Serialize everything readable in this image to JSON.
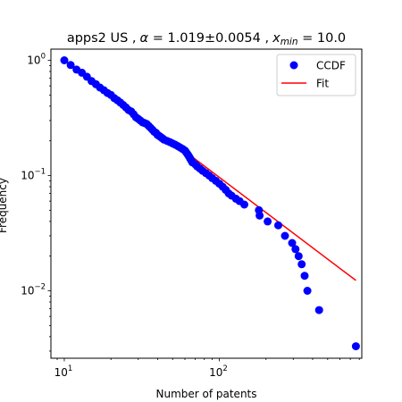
{
  "chart_data": {
    "type": "scatter",
    "title": "apps2 US , α = 1.019±0.0054 , x_min = 10.0",
    "title_parts": {
      "prefix": "apps2 US ,",
      "alpha_symbol": "α",
      "alpha_text": " = 1.019±0.0054 ,",
      "x_symbol": "x",
      "x_subscript": "min",
      "xmin_text": " = 10.0"
    },
    "xlabel": "Number of patents",
    "ylabel": "Frequency",
    "xscale": "log",
    "yscale": "log",
    "xlim": [
      8.2,
      830
    ],
    "ylim": [
      0.0026,
      1.25
    ],
    "x_ticks": [
      {
        "value": 10,
        "base": "10",
        "exp": "1"
      },
      {
        "value": 100,
        "base": "10",
        "exp": "2"
      }
    ],
    "y_ticks": [
      {
        "value": 0.01,
        "base": "10",
        "exp": "−2"
      },
      {
        "value": 0.1,
        "base": "10",
        "exp": "−1"
      },
      {
        "value": 1,
        "base": "10",
        "exp": "0"
      }
    ],
    "grid": false,
    "legend_position": "top-right",
    "series": [
      {
        "name": "CCDF",
        "kind": "scatter",
        "color": "#0000ff",
        "x": [
          10,
          11,
          12,
          13,
          14,
          15,
          16,
          17,
          18,
          19,
          20,
          21,
          22,
          23,
          24,
          25,
          26,
          27,
          28,
          29,
          30,
          31,
          32,
          33,
          34,
          35,
          36,
          37,
          38,
          39,
          40,
          41,
          42,
          43,
          44,
          46,
          48,
          50,
          52,
          54,
          56,
          58,
          60,
          61,
          62,
          63,
          64,
          65,
          66,
          67,
          70,
          72,
          75,
          78,
          82,
          86,
          90,
          95,
          100,
          105,
          110,
          115,
          120,
          128,
          135,
          145,
          180,
          182,
          205,
          240,
          265,
          295,
          310,
          325,
          340,
          355,
          370,
          440,
          760
        ],
        "y": [
          1.0,
          0.91,
          0.83,
          0.78,
          0.72,
          0.66,
          0.62,
          0.58,
          0.55,
          0.52,
          0.5,
          0.47,
          0.45,
          0.43,
          0.41,
          0.39,
          0.37,
          0.36,
          0.34,
          0.32,
          0.31,
          0.3,
          0.29,
          0.285,
          0.28,
          0.27,
          0.26,
          0.25,
          0.24,
          0.235,
          0.225,
          0.22,
          0.215,
          0.21,
          0.205,
          0.2,
          0.195,
          0.19,
          0.185,
          0.18,
          0.175,
          0.17,
          0.165,
          0.16,
          0.155,
          0.15,
          0.145,
          0.14,
          0.135,
          0.13,
          0.125,
          0.12,
          0.115,
          0.11,
          0.105,
          0.1,
          0.095,
          0.09,
          0.085,
          0.08,
          0.075,
          0.07,
          0.067,
          0.063,
          0.06,
          0.056,
          0.05,
          0.045,
          0.04,
          0.037,
          0.03,
          0.026,
          0.023,
          0.02,
          0.017,
          0.0135,
          0.01,
          0.0068,
          0.0033
        ]
      },
      {
        "name": "Fit",
        "kind": "line",
        "color": "#ff0000",
        "x": [
          10,
          760
        ],
        "y": [
          1.0,
          0.0123
        ]
      }
    ]
  }
}
